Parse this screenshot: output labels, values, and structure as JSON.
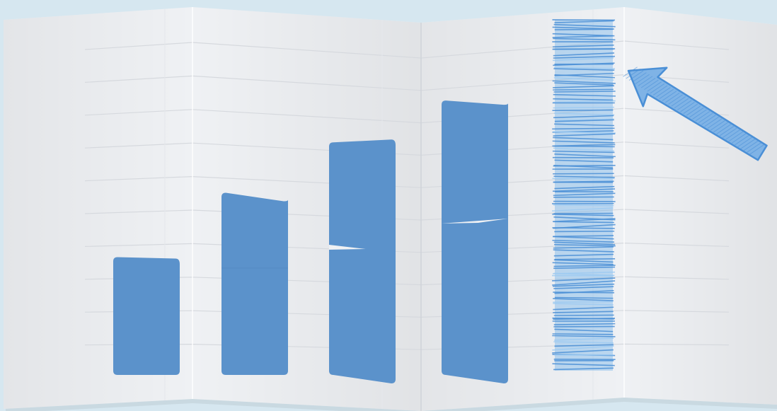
{
  "chart_data": {
    "type": "bar",
    "categories": [
      "",
      "",
      "",
      "",
      ""
    ],
    "values": [
      34,
      54,
      71,
      84,
      110
    ],
    "ylim": [
      0,
      110
    ],
    "grid": true,
    "title": "",
    "xlabel": "",
    "ylabel": "",
    "styles": [
      "solid",
      "solid",
      "solid",
      "solid",
      "sketch"
    ],
    "annotation": {
      "type": "arrow",
      "target_index": 4,
      "style": "sketch"
    }
  },
  "colors": {
    "background": "#d6e7f0",
    "paper": "#eff1f4",
    "grid": "#d6d9de",
    "bar": "#5b92cb",
    "highlight": "#5aa6e8",
    "highlight_stroke": "#4a8fd6"
  }
}
